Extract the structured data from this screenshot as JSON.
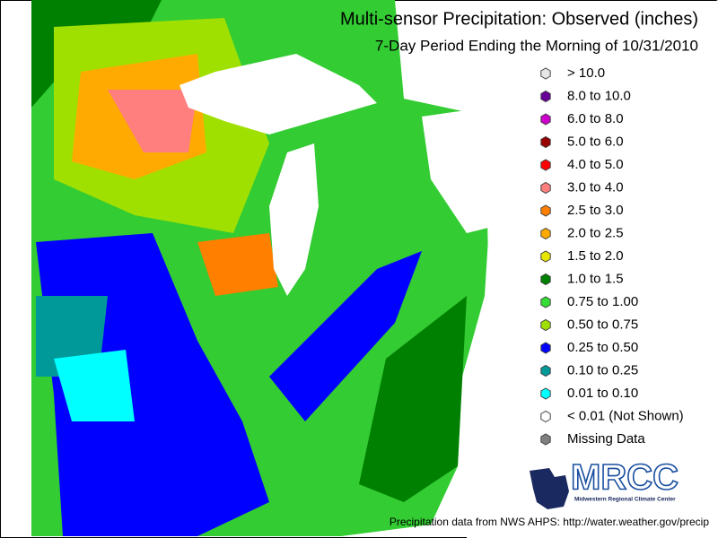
{
  "header": {
    "title": "Multi-sensor Precipitation: Observed (inches)",
    "subtitle": "7-Day Period Ending the Morning of 10/31/2010"
  },
  "legend": {
    "items": [
      {
        "label": "> 10.0",
        "color": "#e6e6e6"
      },
      {
        "label": "8.0 to 10.0",
        "color": "#660099"
      },
      {
        "label": "6.0 to 8.0",
        "color": "#cc00cc"
      },
      {
        "label": "5.0 to 6.0",
        "color": "#990000"
      },
      {
        "label": "4.0 to 5.0",
        "color": "#ff0000"
      },
      {
        "label": "3.0 to 4.0",
        "color": "#ff7f7f"
      },
      {
        "label": "2.5 to 3.0",
        "color": "#ff7f00"
      },
      {
        "label": "2.0 to 2.5",
        "color": "#ffaa00"
      },
      {
        "label": "1.5 to 2.0",
        "color": "#e6e600"
      },
      {
        "label": "1.0 to 1.5",
        "color": "#008000"
      },
      {
        "label": "0.75 to 1.00",
        "color": "#33dd33"
      },
      {
        "label": "0.50 to 0.75",
        "color": "#a0e000"
      },
      {
        "label": "0.25 to 0.50",
        "color": "#0000ff"
      },
      {
        "label": "0.10 to 0.25",
        "color": "#009999"
      },
      {
        "label": "0.01 to 0.10",
        "color": "#00ffff"
      },
      {
        "label": "< 0.01 (Not Shown)",
        "color": "#ffffff"
      },
      {
        "label": "Missing Data",
        "color": "#808080"
      }
    ]
  },
  "logo": {
    "name": "MRCC",
    "full_name": "Midwestern Regional Climate Center"
  },
  "footer": "Precipitation data from NWS AHPS:  http://water.weather.gov/precip"
}
